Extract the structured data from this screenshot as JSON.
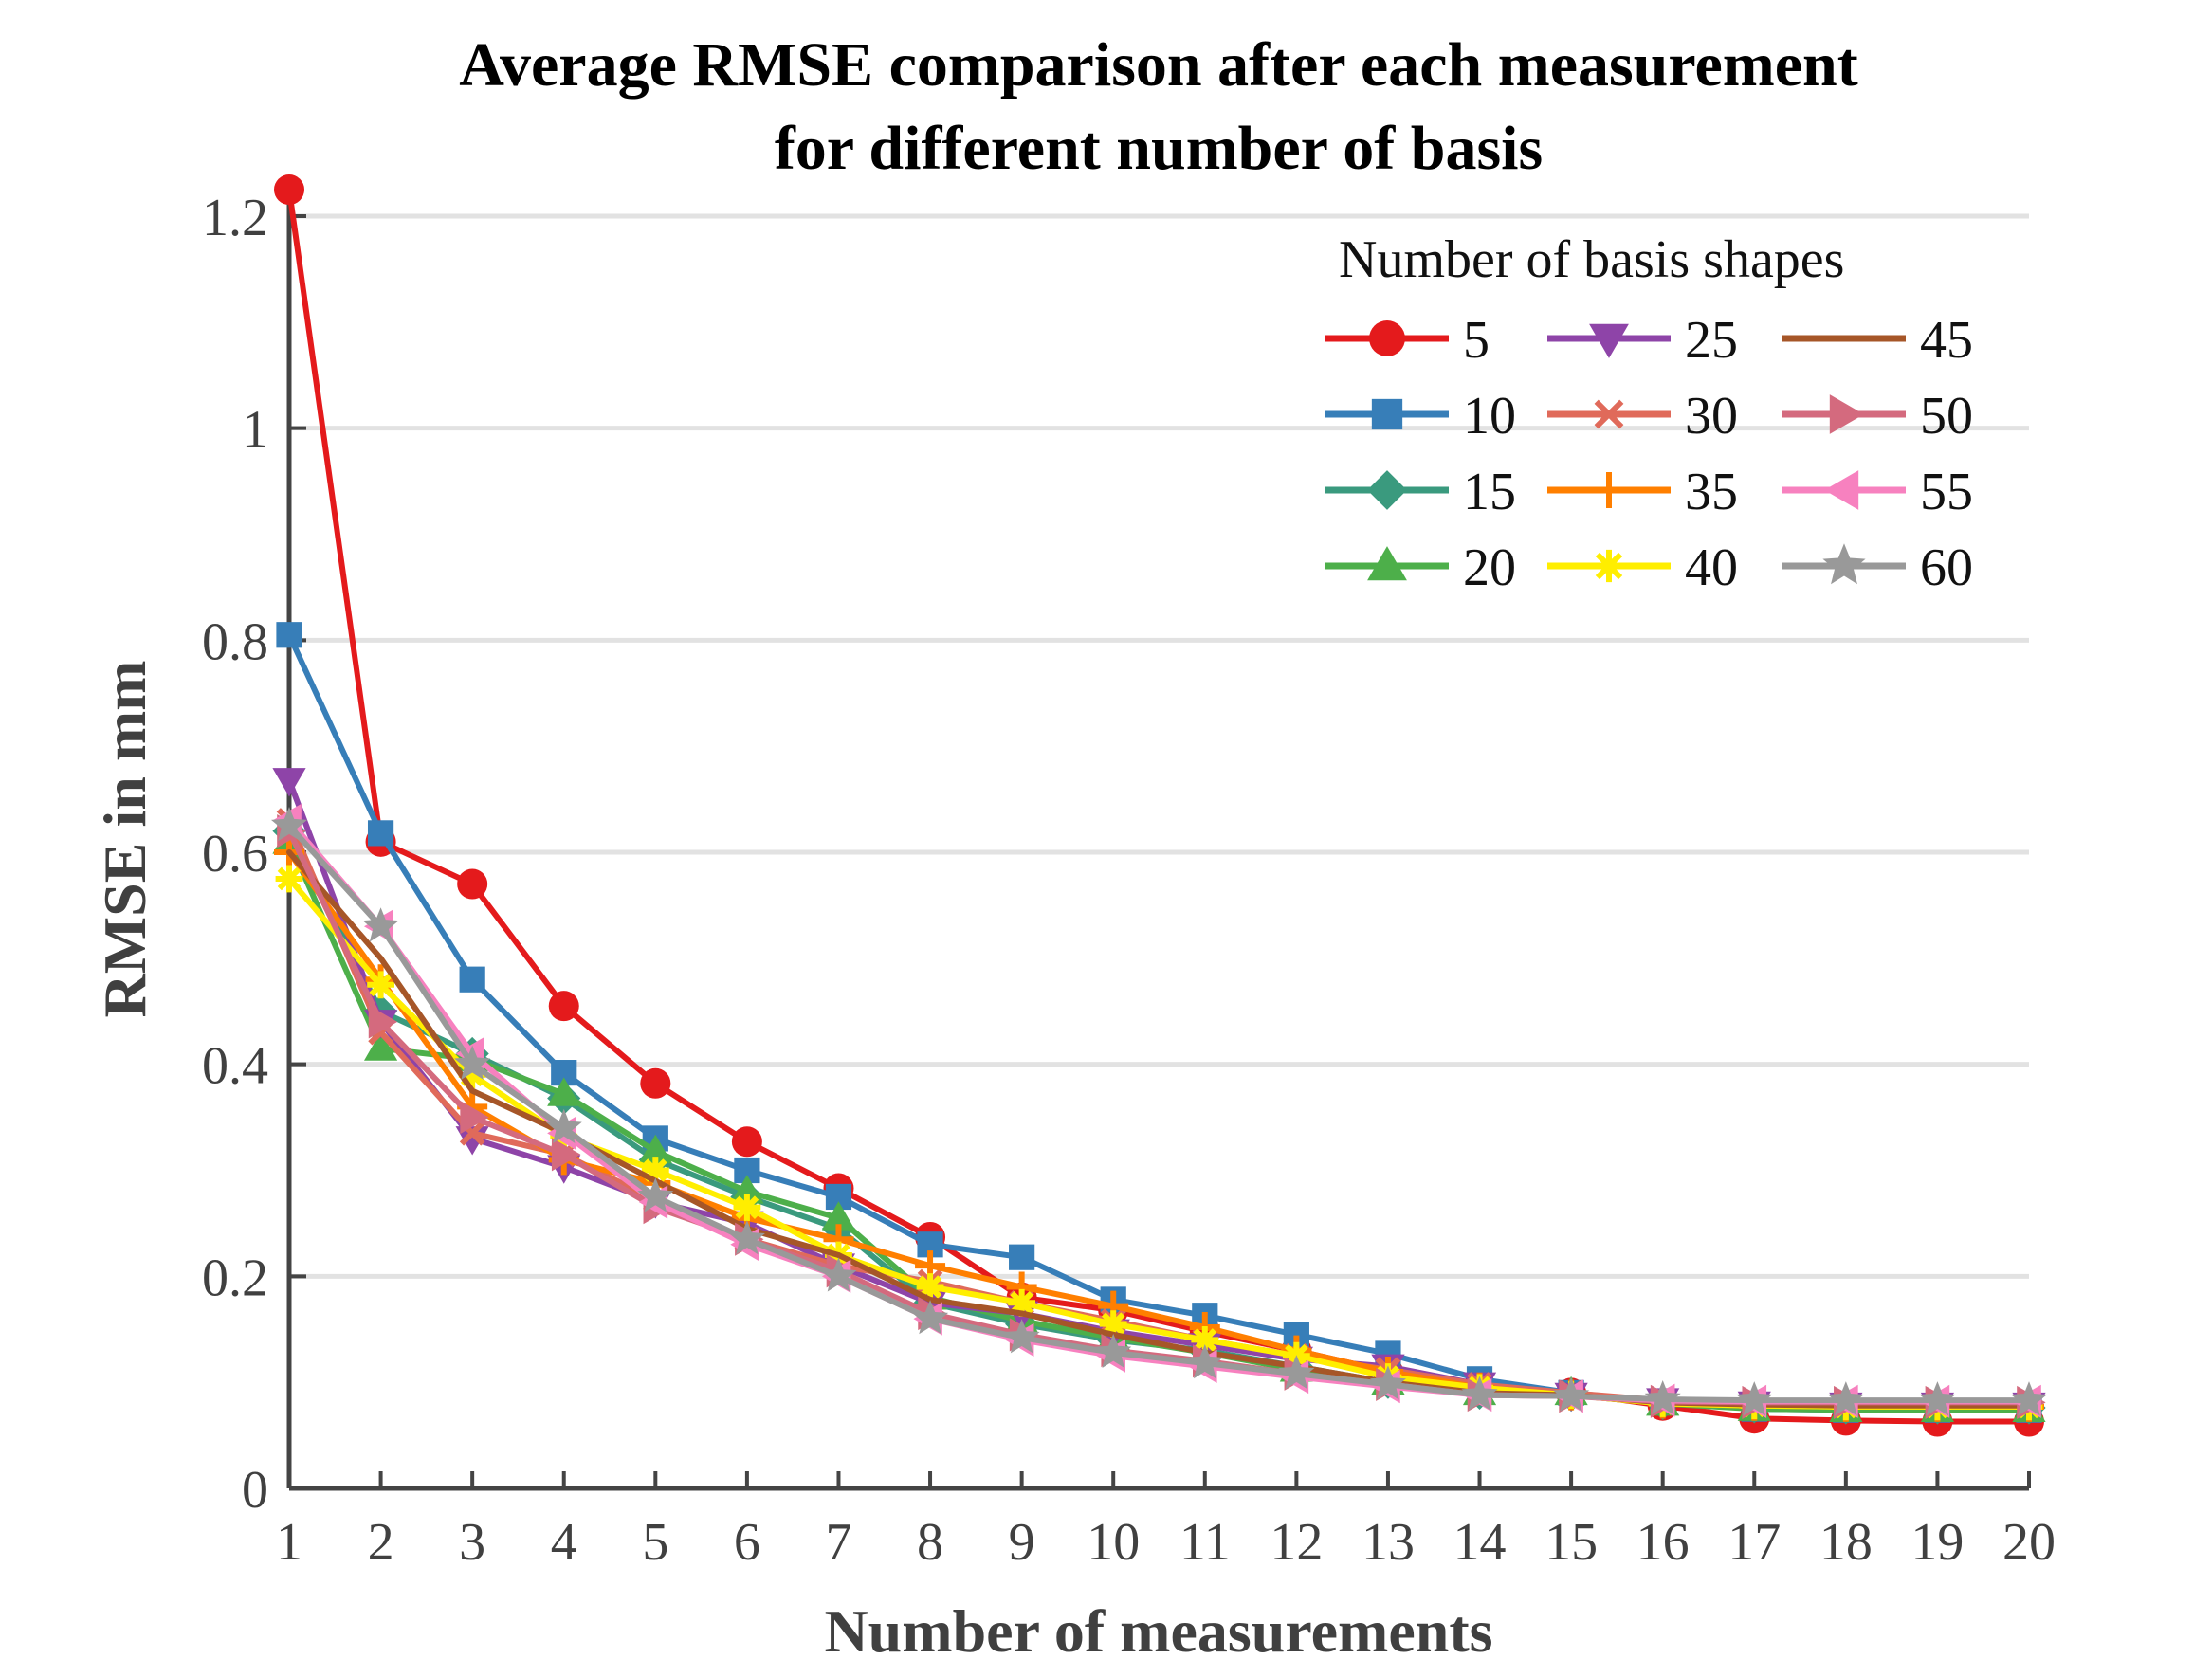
{
  "chart_data": {
    "type": "line",
    "title": [
      "Average RMSE comparison after each measurement",
      "for different number of basis"
    ],
    "xlabel": "Number of measurements",
    "ylabel": "RMSE in mm",
    "xlim": [
      1,
      20
    ],
    "ylim": [
      0,
      1.2
    ],
    "xticks": [
      1,
      2,
      3,
      4,
      5,
      6,
      7,
      8,
      9,
      10,
      11,
      12,
      13,
      14,
      15,
      16,
      17,
      18,
      19,
      20
    ],
    "yticks": [
      0,
      0.2,
      0.4,
      0.6,
      0.8,
      1,
      1.2
    ],
    "ytick_labels": [
      "0",
      "0.2",
      "0.4",
      "0.6",
      "0.8",
      "1",
      "1.2"
    ],
    "grid": "horizontal",
    "legend": {
      "title": "Number of basis shapes",
      "position": "top-right",
      "columns": 3
    },
    "x": [
      1,
      2,
      3,
      4,
      5,
      6,
      7,
      8,
      9,
      10,
      11,
      12,
      13,
      14,
      15,
      16,
      17,
      18,
      19,
      20
    ],
    "series": [
      {
        "name": "5",
        "color": "#e41a1c",
        "marker": "circle",
        "values": [
          1.225,
          0.61,
          0.57,
          0.455,
          0.382,
          0.327,
          0.283,
          0.237,
          0.18,
          0.168,
          0.148,
          0.13,
          0.11,
          0.098,
          0.09,
          0.078,
          0.066,
          0.064,
          0.063,
          0.063
        ]
      },
      {
        "name": "10",
        "color": "#377eb8",
        "marker": "square",
        "values": [
          0.805,
          0.618,
          0.48,
          0.392,
          0.33,
          0.3,
          0.275,
          0.23,
          0.218,
          0.178,
          0.163,
          0.145,
          0.127,
          0.103,
          0.09,
          0.082,
          0.075,
          0.074,
          0.074,
          0.074
        ]
      },
      {
        "name": "15",
        "color": "#3a9a7e",
        "marker": "diamond",
        "values": [
          0.62,
          0.45,
          0.41,
          0.368,
          0.31,
          0.275,
          0.245,
          0.175,
          0.155,
          0.14,
          0.13,
          0.115,
          0.1,
          0.09,
          0.088,
          0.08,
          0.077,
          0.076,
          0.076,
          0.076
        ]
      },
      {
        "name": "20",
        "color": "#4daf4a",
        "marker": "triangle-up",
        "values": [
          0.61,
          0.415,
          0.405,
          0.372,
          0.318,
          0.28,
          0.255,
          0.18,
          0.158,
          0.142,
          0.128,
          0.112,
          0.1,
          0.09,
          0.09,
          0.08,
          0.075,
          0.074,
          0.074,
          0.074
        ]
      },
      {
        "name": "25",
        "color": "#8e44a8",
        "marker": "triangle-down",
        "values": [
          0.668,
          0.44,
          0.33,
          0.303,
          0.27,
          0.25,
          0.21,
          0.175,
          0.165,
          0.148,
          0.135,
          0.122,
          0.115,
          0.098,
          0.088,
          0.083,
          0.08,
          0.079,
          0.079,
          0.079
        ]
      },
      {
        "name": "30",
        "color": "#e06a5a",
        "marker": "x",
        "values": [
          0.63,
          0.43,
          0.335,
          0.315,
          0.272,
          0.235,
          0.21,
          0.195,
          0.175,
          0.158,
          0.14,
          0.125,
          0.112,
          0.098,
          0.09,
          0.083,
          0.08,
          0.079,
          0.079,
          0.079
        ]
      },
      {
        "name": "35",
        "color": "#ff7f00",
        "marker": "plus",
        "values": [
          0.6,
          0.48,
          0.36,
          0.31,
          0.288,
          0.255,
          0.235,
          0.21,
          0.19,
          0.172,
          0.152,
          0.13,
          0.11,
          0.095,
          0.088,
          0.08,
          0.078,
          0.077,
          0.077,
          0.077
        ]
      },
      {
        "name": "40",
        "color": "#ffee00",
        "marker": "asterisk",
        "values": [
          0.575,
          0.475,
          0.39,
          0.332,
          0.3,
          0.265,
          0.22,
          0.19,
          0.175,
          0.155,
          0.14,
          0.125,
          0.105,
          0.095,
          0.088,
          0.08,
          0.078,
          0.077,
          0.077,
          0.077
        ]
      },
      {
        "name": "45",
        "color": "#a65628",
        "marker": "dot",
        "values": [
          0.6,
          0.5,
          0.375,
          0.335,
          0.29,
          0.245,
          0.22,
          0.178,
          0.165,
          0.145,
          0.128,
          0.115,
          0.1,
          0.09,
          0.088,
          0.081,
          0.079,
          0.078,
          0.078,
          0.078
        ]
      },
      {
        "name": "50",
        "color": "#d46a7e",
        "marker": "triangle-right",
        "values": [
          0.62,
          0.44,
          0.35,
          0.315,
          0.265,
          0.235,
          0.205,
          0.165,
          0.145,
          0.13,
          0.12,
          0.108,
          0.098,
          0.088,
          0.087,
          0.082,
          0.081,
          0.081,
          0.081,
          0.081
        ]
      },
      {
        "name": "55",
        "color": "#f781bf",
        "marker": "triangle-left",
        "values": [
          0.63,
          0.53,
          0.41,
          0.335,
          0.27,
          0.23,
          0.2,
          0.16,
          0.14,
          0.125,
          0.115,
          0.105,
          0.096,
          0.088,
          0.087,
          0.083,
          0.082,
          0.082,
          0.082,
          0.082
        ]
      },
      {
        "name": "60",
        "color": "#999999",
        "marker": "star",
        "values": [
          0.625,
          0.53,
          0.4,
          0.34,
          0.275,
          0.235,
          0.2,
          0.16,
          0.142,
          0.128,
          0.118,
          0.108,
          0.098,
          0.088,
          0.087,
          0.084,
          0.083,
          0.083,
          0.083,
          0.083
        ]
      }
    ]
  }
}
